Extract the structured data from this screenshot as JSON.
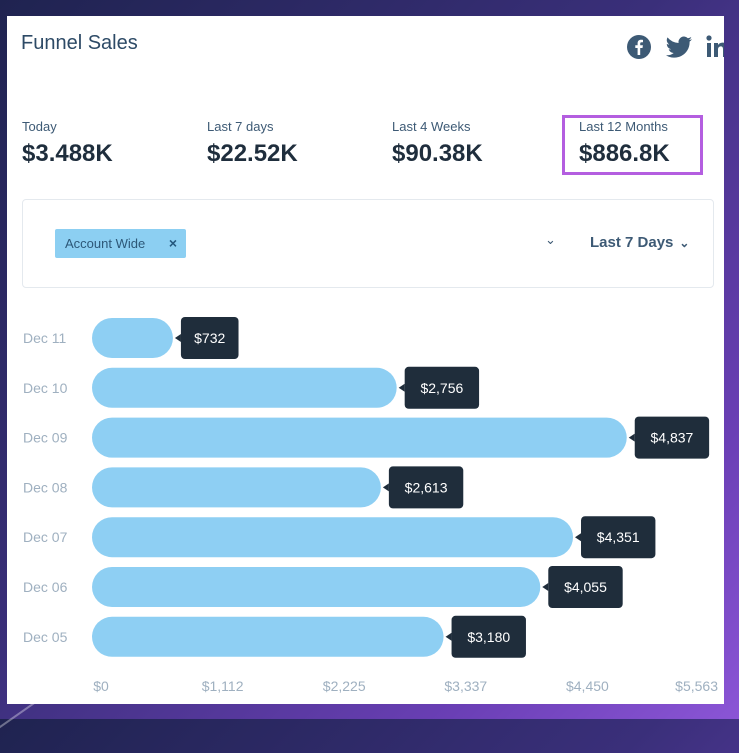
{
  "header": {
    "title": "Funnel Sales"
  },
  "social": [
    "facebook-icon",
    "twitter-icon",
    "linkedin-icon"
  ],
  "stats": [
    {
      "label": "Today",
      "value": "$3.488K"
    },
    {
      "label": "Last 7 days",
      "value": "$22.52K"
    },
    {
      "label": "Last 4 Weeks",
      "value": "$90.38K"
    },
    {
      "label": "Last 12 Months",
      "value": "$886.8K"
    }
  ],
  "filter": {
    "tag": "Account Wide",
    "tag_remove": "×",
    "dropdown_chevron": "⌄",
    "range": "Last 7 Days"
  },
  "colors": {
    "bar": "#8ecff3",
    "tooltip": "#1f2d3b",
    "highlight": "#b45ee0"
  },
  "chart_data": {
    "type": "bar",
    "orientation": "horizontal",
    "categories": [
      "Dec 11",
      "Dec 10",
      "Dec 09",
      "Dec 08",
      "Dec 07",
      "Dec 06",
      "Dec 05"
    ],
    "values": [
      732,
      2756,
      4837,
      2613,
      4351,
      4055,
      3180
    ],
    "value_labels": [
      "$732",
      "$2,756",
      "$4,837",
      "$2,613",
      "$4,351",
      "$4,055",
      "$3,180"
    ],
    "x_ticks": [
      "$0",
      "$1,112",
      "$2,225",
      "$3,337",
      "$4,450",
      "$5,563"
    ],
    "xlim": [
      0,
      5563
    ],
    "grid": false
  }
}
